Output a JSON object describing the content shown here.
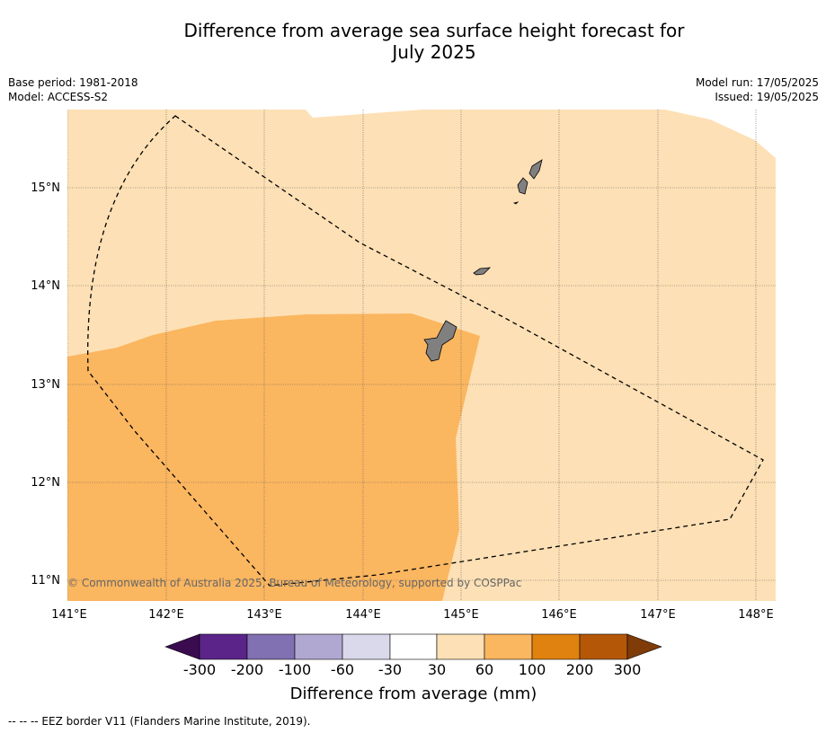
{
  "title_line1": "Difference from average sea surface height forecast for",
  "title_line2": "July 2025",
  "base_period": "Base period: 1981-2018",
  "model": "Model: ACCESS-S2",
  "model_run": "Model run: 17/05/2025",
  "issued": "Issued: 19/05/2025",
  "copyright": "© Commonwealth of Australia 2025, Bureau of Meteorology, supported by COSPPac",
  "footer": "--  --  -- EEZ border V11 (Flanders Marine Institute, 2019).",
  "map": {
    "lon_labels": [
      "141°E",
      "142°E",
      "143°E",
      "144°E",
      "145°E",
      "146°E",
      "147°E",
      "148°E"
    ],
    "lat_labels": [
      "15°N",
      "14°N",
      "13°N",
      "12°N",
      "11°N"
    ],
    "lon_range": [
      141.0,
      148.2
    ],
    "lat_range": [
      10.8,
      15.8
    ],
    "grid": true,
    "land_color": "#808080",
    "zone_colors": {
      "30_to_60": "#fde0b5",
      "60_to_100": "#fbb660"
    }
  },
  "colorbar": {
    "title": "Difference from average (mm)",
    "labels": [
      "-300",
      "-200",
      "-100",
      "-60",
      "-30",
      "30",
      "60",
      "100",
      "200",
      "300"
    ],
    "colors": [
      "#3b0b4f",
      "#5a2489",
      "#8170b2",
      "#b1a8d2",
      "#d9d9eb",
      "#ffffff",
      "#fde0b5",
      "#fbb660",
      "#e0820f",
      "#b45808",
      "#7f3b08"
    ]
  }
}
